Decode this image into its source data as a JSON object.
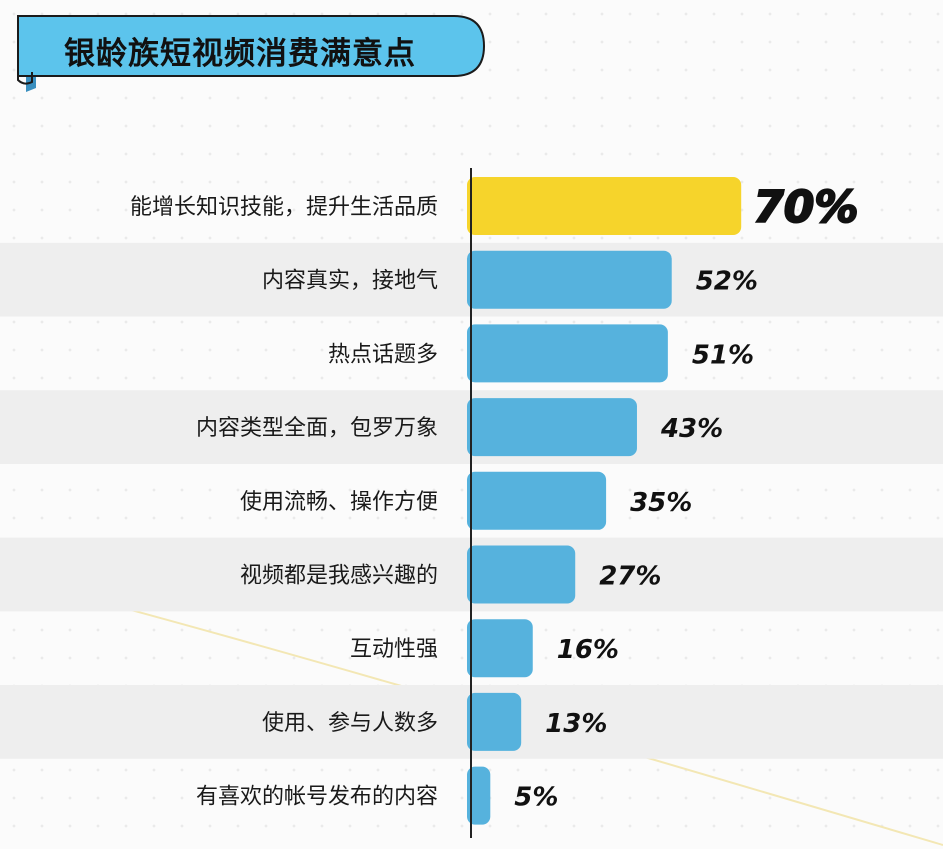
{
  "page": {
    "title": "银龄族短视频消费满意点"
  },
  "colors": {
    "highlight_bar": "#f6d42b",
    "bar": "#56b2dd",
    "band": "#eeeeee",
    "title_ribbon": "#5cc4ec"
  },
  "chart_data": {
    "type": "bar",
    "orientation": "horizontal",
    "title": "银龄族短视频消费满意点",
    "categories": [
      "能增长知识技能，提升生活品质",
      "内容真实，接地气",
      "热点话题多",
      "内容类型全面，包罗万象",
      "使用流畅、操作方便",
      "视频都是我感兴趣的",
      "互动性强",
      "使用、参与人数多",
      "有喜欢的帐号发布的内容"
    ],
    "values": [
      70,
      52,
      51,
      43,
      35,
      27,
      16,
      13,
      5
    ],
    "value_labels": [
      "70%",
      "52%",
      "51%",
      "43%",
      "35%",
      "27%",
      "16%",
      "13%",
      "5%"
    ],
    "unit": "%",
    "highlight_index": 0,
    "xlim": [
      0,
      100
    ],
    "grid": false,
    "legend": "none"
  }
}
